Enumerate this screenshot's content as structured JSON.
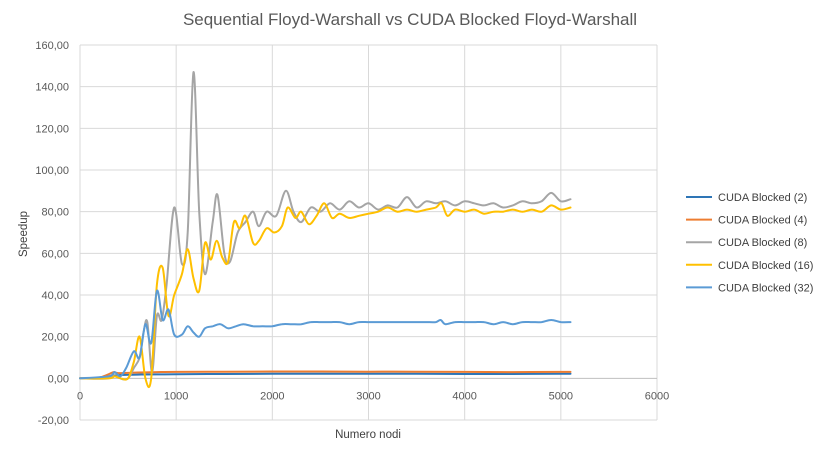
{
  "chart_data": {
    "type": "line",
    "title": "Sequential Floyd-Warshall vs CUDA Blocked Floyd-Warshall",
    "xlabel": "Numero nodi",
    "ylabel": "Speedup",
    "xlim": [
      0,
      6000
    ],
    "ylim": [
      -20,
      160
    ],
    "x_ticks": [
      "0",
      "1000",
      "2000",
      "3000",
      "4000",
      "5000",
      "6000"
    ],
    "y_ticks": [
      "-20,00",
      "0,00",
      "20,00",
      "40,00",
      "60,00",
      "80,00",
      "100,00",
      "120,00",
      "140,00",
      "160,00"
    ],
    "grid": true,
    "legend_position": "right",
    "series": [
      {
        "name": "CUDA Blocked (2)",
        "color": "#2E75B6",
        "points": [
          [
            0,
            0
          ],
          [
            100,
            0
          ],
          [
            200,
            0.4
          ],
          [
            300,
            1
          ],
          [
            400,
            1.5
          ],
          [
            600,
            1.8
          ],
          [
            800,
            1.9
          ],
          [
            1000,
            2
          ],
          [
            1500,
            2.1
          ],
          [
            2000,
            2.2
          ],
          [
            2500,
            2.2
          ],
          [
            3000,
            2.2
          ],
          [
            3500,
            2.2
          ],
          [
            4000,
            2.1
          ],
          [
            4500,
            2.1
          ],
          [
            5000,
            2.2
          ],
          [
            5100,
            2.2
          ]
        ]
      },
      {
        "name": "CUDA Blocked (4)",
        "color": "#ED7D31",
        "points": [
          [
            0,
            0
          ],
          [
            100,
            0
          ],
          [
            200,
            0.3
          ],
          [
            300,
            2
          ],
          [
            350,
            3
          ],
          [
            400,
            2.5
          ],
          [
            600,
            2.8
          ],
          [
            800,
            3
          ],
          [
            1000,
            3.1
          ],
          [
            1500,
            3.2
          ],
          [
            2000,
            3.3
          ],
          [
            2500,
            3.3
          ],
          [
            3000,
            3.2
          ],
          [
            3500,
            3.2
          ],
          [
            4000,
            3.1
          ],
          [
            4500,
            3
          ],
          [
            5000,
            3.1
          ],
          [
            5100,
            3.1
          ]
        ]
      },
      {
        "name": "CUDA Blocked (8)",
        "color": "#A5A5A5",
        "points": [
          [
            0,
            0
          ],
          [
            300,
            0
          ],
          [
            360,
            3
          ],
          [
            420,
            0
          ],
          [
            500,
            0
          ],
          [
            560,
            5
          ],
          [
            620,
            10
          ],
          [
            660,
            22
          ],
          [
            700,
            27
          ],
          [
            750,
            3
          ],
          [
            800,
            30
          ],
          [
            850,
            28
          ],
          [
            900,
            45
          ],
          [
            980,
            82
          ],
          [
            1060,
            55
          ],
          [
            1120,
            70
          ],
          [
            1180,
            147
          ],
          [
            1240,
            80
          ],
          [
            1300,
            50
          ],
          [
            1380,
            75
          ],
          [
            1430,
            88
          ],
          [
            1500,
            60
          ],
          [
            1560,
            56
          ],
          [
            1640,
            70
          ],
          [
            1720,
            75
          ],
          [
            1800,
            80
          ],
          [
            1860,
            73
          ],
          [
            1940,
            80
          ],
          [
            2040,
            78
          ],
          [
            2140,
            90
          ],
          [
            2220,
            80
          ],
          [
            2300,
            75
          ],
          [
            2400,
            82
          ],
          [
            2500,
            80
          ],
          [
            2600,
            84
          ],
          [
            2700,
            81
          ],
          [
            2800,
            85
          ],
          [
            2900,
            82
          ],
          [
            3000,
            84
          ],
          [
            3100,
            81
          ],
          [
            3200,
            83
          ],
          [
            3300,
            82
          ],
          [
            3400,
            87
          ],
          [
            3500,
            82
          ],
          [
            3600,
            85
          ],
          [
            3700,
            84
          ],
          [
            3800,
            85
          ],
          [
            3900,
            83
          ],
          [
            4000,
            85
          ],
          [
            4100,
            84
          ],
          [
            4200,
            83
          ],
          [
            4300,
            84
          ],
          [
            4400,
            82
          ],
          [
            4500,
            83
          ],
          [
            4600,
            85
          ],
          [
            4700,
            84
          ],
          [
            4800,
            85
          ],
          [
            4900,
            89
          ],
          [
            5000,
            85
          ],
          [
            5100,
            86
          ]
        ]
      },
      {
        "name": "CUDA Blocked (16)",
        "color": "#FFC000",
        "points": [
          [
            0,
            0
          ],
          [
            300,
            0
          ],
          [
            360,
            1
          ],
          [
            420,
            0
          ],
          [
            500,
            0
          ],
          [
            560,
            8
          ],
          [
            620,
            20
          ],
          [
            680,
            0
          ],
          [
            740,
            0
          ],
          [
            800,
            45
          ],
          [
            860,
            53
          ],
          [
            920,
            30
          ],
          [
            980,
            40
          ],
          [
            1060,
            50
          ],
          [
            1120,
            62
          ],
          [
            1180,
            48
          ],
          [
            1240,
            42
          ],
          [
            1300,
            65
          ],
          [
            1360,
            57
          ],
          [
            1420,
            66
          ],
          [
            1480,
            58
          ],
          [
            1540,
            56
          ],
          [
            1600,
            75
          ],
          [
            1660,
            72
          ],
          [
            1720,
            78
          ],
          [
            1800,
            65
          ],
          [
            1860,
            66
          ],
          [
            1940,
            72
          ],
          [
            2020,
            70
          ],
          [
            2100,
            73
          ],
          [
            2160,
            82
          ],
          [
            2240,
            77
          ],
          [
            2300,
            80
          ],
          [
            2380,
            74
          ],
          [
            2460,
            78
          ],
          [
            2540,
            84
          ],
          [
            2620,
            77
          ],
          [
            2700,
            79
          ],
          [
            2800,
            77
          ],
          [
            2900,
            78
          ],
          [
            3000,
            79
          ],
          [
            3100,
            80
          ],
          [
            3200,
            82
          ],
          [
            3300,
            80
          ],
          [
            3400,
            81
          ],
          [
            3500,
            80
          ],
          [
            3600,
            81
          ],
          [
            3700,
            82
          ],
          [
            3760,
            84
          ],
          [
            3820,
            78
          ],
          [
            3900,
            81
          ],
          [
            4000,
            80
          ],
          [
            4100,
            81
          ],
          [
            4200,
            79
          ],
          [
            4300,
            80
          ],
          [
            4400,
            80
          ],
          [
            4500,
            81
          ],
          [
            4600,
            80
          ],
          [
            4700,
            81
          ],
          [
            4800,
            80
          ],
          [
            4900,
            83
          ],
          [
            5000,
            81
          ],
          [
            5100,
            82
          ]
        ]
      },
      {
        "name": "CUDA Blocked (32)",
        "color": "#5B9BD5",
        "points": [
          [
            0,
            0
          ],
          [
            300,
            1
          ],
          [
            360,
            3
          ],
          [
            420,
            1
          ],
          [
            480,
            5
          ],
          [
            560,
            13
          ],
          [
            620,
            10
          ],
          [
            680,
            26
          ],
          [
            740,
            17
          ],
          [
            800,
            42
          ],
          [
            860,
            28
          ],
          [
            920,
            33
          ],
          [
            980,
            21
          ],
          [
            1060,
            21
          ],
          [
            1120,
            25
          ],
          [
            1180,
            22
          ],
          [
            1240,
            20
          ],
          [
            1300,
            24
          ],
          [
            1380,
            25
          ],
          [
            1460,
            26
          ],
          [
            1540,
            24
          ],
          [
            1620,
            25
          ],
          [
            1700,
            26
          ],
          [
            1800,
            25
          ],
          [
            1900,
            25
          ],
          [
            2000,
            25
          ],
          [
            2100,
            26
          ],
          [
            2200,
            26
          ],
          [
            2300,
            26
          ],
          [
            2400,
            27
          ],
          [
            2500,
            27
          ],
          [
            2600,
            27
          ],
          [
            2700,
            27
          ],
          [
            2800,
            26
          ],
          [
            2900,
            27
          ],
          [
            3000,
            27
          ],
          [
            3100,
            27
          ],
          [
            3200,
            27
          ],
          [
            3300,
            27
          ],
          [
            3400,
            27
          ],
          [
            3500,
            27
          ],
          [
            3600,
            27
          ],
          [
            3700,
            27
          ],
          [
            3750,
            28
          ],
          [
            3800,
            26
          ],
          [
            3900,
            27
          ],
          [
            4000,
            27
          ],
          [
            4100,
            27
          ],
          [
            4200,
            27
          ],
          [
            4300,
            26
          ],
          [
            4400,
            27
          ],
          [
            4500,
            26
          ],
          [
            4600,
            27
          ],
          [
            4700,
            27
          ],
          [
            4800,
            27
          ],
          [
            4900,
            28
          ],
          [
            5000,
            27
          ],
          [
            5100,
            27
          ]
        ]
      }
    ]
  }
}
